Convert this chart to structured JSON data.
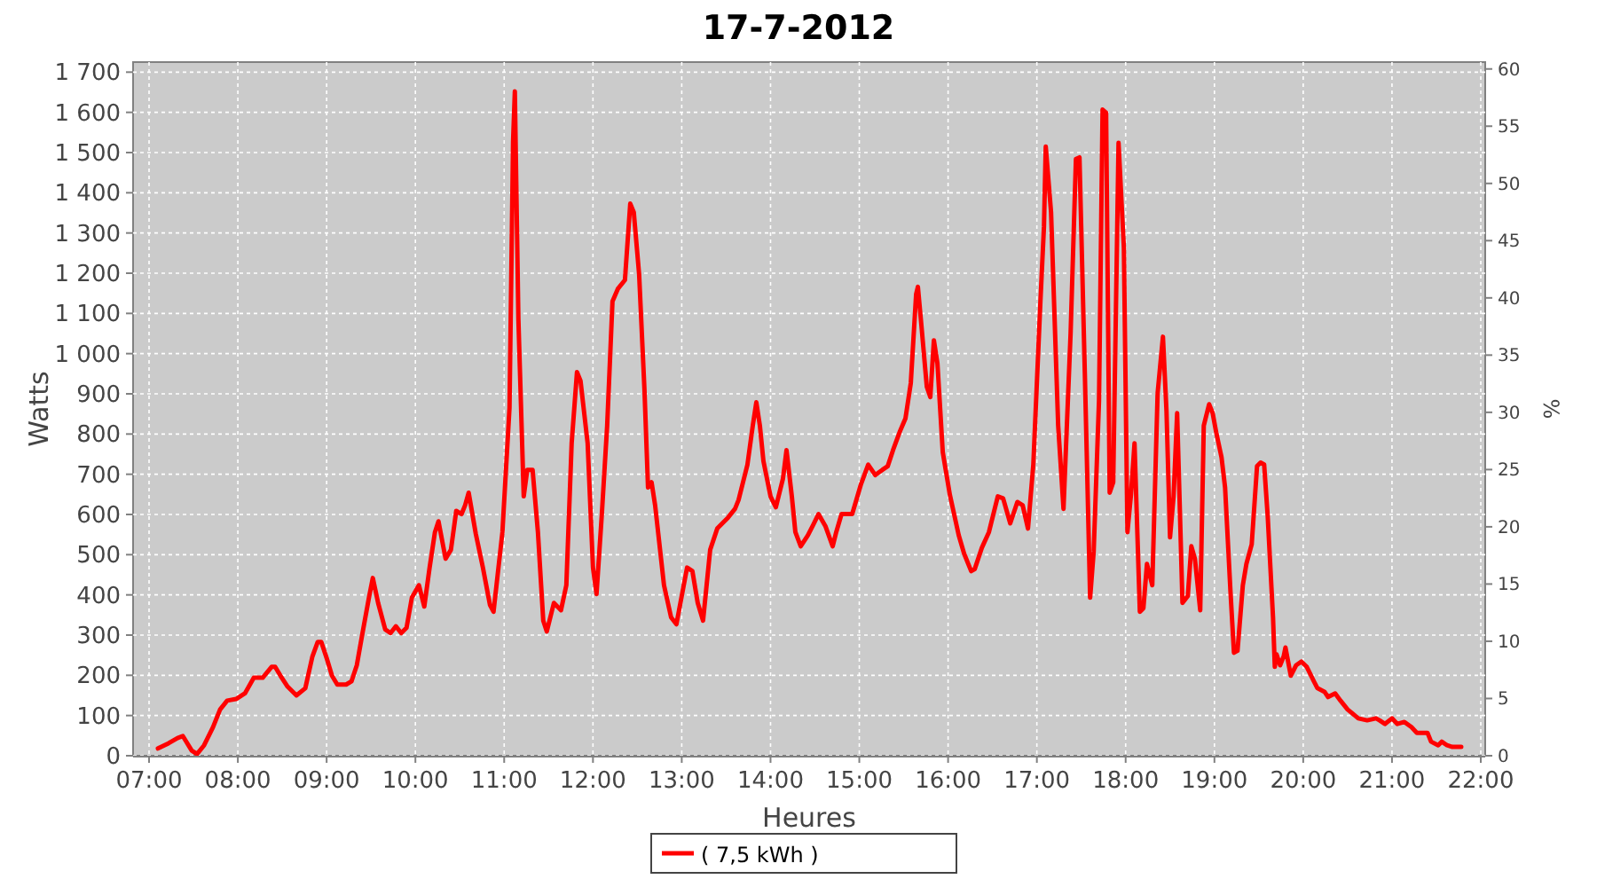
{
  "chart_data": {
    "type": "line",
    "title": "17-7-2012",
    "xlabel": "Heures",
    "ylabel": "Watts",
    "y2label": "%",
    "xlim": [
      6.82,
      22.05
    ],
    "xticks": [
      {
        "value": 7,
        "label": "07:00"
      },
      {
        "value": 8,
        "label": "08:00"
      },
      {
        "value": 9,
        "label": "09:00"
      },
      {
        "value": 10,
        "label": "10:00"
      },
      {
        "value": 11,
        "label": "11:00"
      },
      {
        "value": 12,
        "label": "12:00"
      },
      {
        "value": 13,
        "label": "13:00"
      },
      {
        "value": 14,
        "label": "14:00"
      },
      {
        "value": 15,
        "label": "15:00"
      },
      {
        "value": 16,
        "label": "16:00"
      },
      {
        "value": 17,
        "label": "17:00"
      },
      {
        "value": 18,
        "label": "18:00"
      },
      {
        "value": 19,
        "label": "19:00"
      },
      {
        "value": 20,
        "label": "20:00"
      },
      {
        "value": 21,
        "label": "21:00"
      },
      {
        "value": 22,
        "label": "22:00"
      }
    ],
    "ylim": [
      0,
      1725
    ],
    "yticks": [
      0,
      100,
      200,
      300,
      400,
      500,
      600,
      700,
      800,
      900,
      {
        "value": 1000,
        "label": "1 000"
      },
      {
        "value": 1100,
        "label": "1 100"
      },
      {
        "value": 1200,
        "label": "1 200"
      },
      {
        "value": 1300,
        "label": "1 300"
      },
      {
        "value": 1400,
        "label": "1 400"
      },
      {
        "value": 1500,
        "label": "1 500"
      },
      {
        "value": 1600,
        "label": "1 600"
      },
      {
        "value": 1700,
        "label": "1 700"
      }
    ],
    "y2lim": [
      0,
      60.6
    ],
    "y2ticks": [
      0,
      5,
      10,
      15,
      20,
      25,
      30,
      35,
      40,
      45,
      50,
      55,
      60
    ],
    "grid": true,
    "legend": "bottom",
    "marker": "none",
    "line_style": "solid",
    "x": [
      7.1,
      7.22,
      7.32,
      7.38,
      7.48,
      7.54,
      7.62,
      7.72,
      7.8,
      7.88,
      7.98,
      8.08,
      8.18,
      8.28,
      8.38,
      8.42,
      8.48,
      8.56,
      8.66,
      8.76,
      8.84,
      8.9,
      8.94,
      9.0,
      9.06,
      9.12,
      9.22,
      9.28,
      9.34,
      9.4,
      9.48,
      9.52,
      9.58,
      9.66,
      9.72,
      9.78,
      9.84,
      9.9,
      9.96,
      10.04,
      10.1,
      10.16,
      10.22,
      10.26,
      10.34,
      10.4,
      10.46,
      10.52,
      10.56,
      10.6,
      10.68,
      10.76,
      10.84,
      10.88,
      10.98,
      11.06,
      11.1,
      11.12,
      11.16,
      11.22,
      11.26,
      11.32,
      11.38,
      11.44,
      11.48,
      11.56,
      11.64,
      11.7,
      11.76,
      11.82,
      11.86,
      11.94,
      12.0,
      12.04,
      12.1,
      12.16,
      12.22,
      12.28,
      12.36,
      12.42,
      12.46,
      12.52,
      12.58,
      12.62,
      12.66,
      12.7,
      12.8,
      12.88,
      12.94,
      13.06,
      13.12,
      13.18,
      13.24,
      13.32,
      13.4,
      13.52,
      13.6,
      13.64,
      13.74,
      13.8,
      13.84,
      13.88,
      13.92,
      14.0,
      14.06,
      14.14,
      14.18,
      14.24,
      14.28,
      14.34,
      14.42,
      14.48,
      14.54,
      14.62,
      14.7,
      14.74,
      14.8,
      14.92,
      15.02,
      15.1,
      15.18,
      15.26,
      15.32,
      15.38,
      15.46,
      15.52,
      15.58,
      15.64,
      15.66,
      15.7,
      15.76,
      15.8,
      15.84,
      15.88,
      15.94,
      16.02,
      16.12,
      16.18,
      16.26,
      16.3,
      16.38,
      16.46,
      16.56,
      16.62,
      16.7,
      16.78,
      16.84,
      16.9,
      16.96,
      17.04,
      17.08,
      17.1,
      17.16,
      17.24,
      17.3,
      17.38,
      17.44,
      17.48,
      17.54,
      17.6,
      17.64,
      17.7,
      17.74,
      17.78,
      17.82,
      17.86,
      17.92,
      17.98,
      18.02,
      18.06,
      18.1,
      18.16,
      18.2,
      18.24,
      18.3,
      18.36,
      18.42,
      18.46,
      18.5,
      18.54,
      18.58,
      18.64,
      18.7,
      18.74,
      18.78,
      18.84,
      18.88,
      18.94,
      18.98,
      19.02,
      19.08,
      19.12,
      19.18,
      19.22,
      19.26,
      19.32,
      19.36,
      19.42,
      19.48,
      19.52,
      19.56,
      19.6,
      19.66,
      19.68,
      19.7,
      19.74,
      19.78,
      19.8,
      19.86,
      19.92,
      19.98,
      20.04,
      20.12,
      20.16,
      20.24,
      20.28,
      20.36,
      20.42,
      20.5,
      20.62,
      20.72,
      20.82,
      20.86,
      20.92,
      21.0,
      21.06,
      21.14,
      21.22,
      21.28,
      21.34,
      21.4,
      21.44,
      21.52,
      21.56,
      21.62,
      21.68,
      21.78
    ],
    "series": [
      {
        "name": "( 7,5 kWh )",
        "color": "#ff0000",
        "values": [
          18,
          31,
          44,
          49,
          13,
          4,
          26,
          71,
          115,
          137,
          141,
          155,
          194,
          194,
          221,
          221,
          199,
          172,
          150,
          168,
          247,
          283,
          283,
          243,
          199,
          177,
          177,
          185,
          225,
          300,
          397,
          442,
          380,
          314,
          305,
          322,
          305,
          318,
          393,
          424,
          371,
          468,
          556,
          583,
          490,
          512,
          609,
          601,
          623,
          654,
          552,
          468,
          375,
          358,
          556,
          866,
          1528,
          1652,
          1086,
          645,
          711,
          711,
          556,
          336,
          309,
          380,
          362,
          424,
          777,
          954,
          932,
          777,
          468,
          402,
          601,
          821,
          1130,
          1161,
          1183,
          1373,
          1351,
          1197,
          910,
          667,
          680,
          623,
          424,
          344,
          327,
          468,
          459,
          380,
          336,
          512,
          565,
          592,
          614,
          636,
          724,
          821,
          879,
          821,
          733,
          645,
          618,
          689,
          760,
          645,
          556,
          521,
          548,
          574,
          601,
          570,
          521,
          556,
          601,
          601,
          676,
          724,
          698,
          711,
          720,
          760,
          808,
          839,
          927,
          1148,
          1166,
          1069,
          918,
          892,
          1033,
          976,
          755,
          649,
          548,
          503,
          459,
          464,
          517,
          556,
          645,
          640,
          578,
          631,
          623,
          565,
          724,
          1130,
          1316,
          1515,
          1351,
          821,
          614,
          1051,
          1484,
          1488,
          954,
          393,
          508,
          883,
          1607,
          1599,
          654,
          680,
          1524,
          1263,
          556,
          649,
          777,
          358,
          367,
          477,
          424,
          901,
          1042,
          857,
          543,
          645,
          852,
          380,
          397,
          521,
          490,
          362,
          821,
          874,
          852,
          804,
          742,
          667,
          411,
          256,
          261,
          424,
          477,
          526,
          720,
          729,
          724,
          596,
          344,
          221,
          252,
          225,
          247,
          269,
          199,
          225,
          234,
          221,
          185,
          168,
          159,
          146,
          155,
          137,
          115,
          93,
          88,
          93,
          88,
          79,
          93,
          79,
          84,
          71,
          57,
          57,
          57,
          35,
          26,
          35,
          26,
          22,
          22
        ]
      }
    ]
  }
}
